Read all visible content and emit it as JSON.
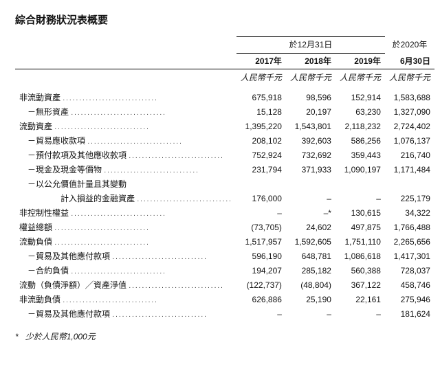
{
  "title": "綜合財務狀況表概要",
  "group_headers": {
    "g1": "於12月31日",
    "g2": "於2020年"
  },
  "years": {
    "y2017": "2017年",
    "y2018": "2018年",
    "y2019": "2019年",
    "yjun": "6月30日"
  },
  "unit": "人民幣千元",
  "rows": [
    {
      "label": "非流動資產",
      "v": [
        "675,918",
        "98,596",
        "152,914",
        "1,583,688"
      ],
      "indent": 0
    },
    {
      "label": "－無形資產",
      "v": [
        "15,128",
        "20,197",
        "63,230",
        "1,327,090"
      ],
      "indent": 1
    },
    {
      "label": "流動資產",
      "v": [
        "1,395,220",
        "1,543,801",
        "2,118,232",
        "2,724,402"
      ],
      "indent": 0
    },
    {
      "label": "－貿易應收款項",
      "v": [
        "208,102",
        "392,603",
        "586,256",
        "1,076,137"
      ],
      "indent": 1
    },
    {
      "label": "－預付款項及其他應收款項",
      "v": [
        "752,924",
        "732,692",
        "359,443",
        "216,740"
      ],
      "indent": 1
    },
    {
      "label": "－現金及現金等價物",
      "v": [
        "231,794",
        "371,933",
        "1,090,197",
        "1,171,484"
      ],
      "indent": 1
    },
    {
      "label": "－以公允價值計量且其變動",
      "v": [
        "",
        "",
        "",
        ""
      ],
      "indent": 1,
      "nodots": true
    },
    {
      "label": "　　計入損益的金融資產",
      "v": [
        "176,000",
        "–",
        "–",
        "225,179"
      ],
      "indent": 2
    },
    {
      "label": "非控制性權益",
      "v": [
        "–",
        "–*",
        "130,615",
        "34,322"
      ],
      "indent": 0
    },
    {
      "label": "權益總額",
      "v": [
        "(73,705)",
        "24,602",
        "497,875",
        "1,766,488"
      ],
      "indent": 0
    },
    {
      "label": "流動負債",
      "v": [
        "1,517,957",
        "1,592,605",
        "1,751,110",
        "2,265,656"
      ],
      "indent": 0
    },
    {
      "label": "－貿易及其他應付款項",
      "v": [
        "596,190",
        "648,781",
        "1,086,618",
        "1,417,301"
      ],
      "indent": 1
    },
    {
      "label": "－合約負債",
      "v": [
        "194,207",
        "285,182",
        "560,388",
        "728,037"
      ],
      "indent": 1
    },
    {
      "label": "流動（負債淨額）╱資產淨值",
      "v": [
        "(122,737)",
        "(48,804)",
        "367,122",
        "458,746"
      ],
      "indent": 0
    },
    {
      "label": "非流動負債",
      "v": [
        "626,886",
        "25,190",
        "22,161",
        "275,946"
      ],
      "indent": 0
    },
    {
      "label": "－貿易及其他應付款項",
      "v": [
        "–",
        "–",
        "–",
        "181,624"
      ],
      "indent": 1
    }
  ],
  "footnote_marker": "*",
  "footnote": "少於人民幣1,000元"
}
